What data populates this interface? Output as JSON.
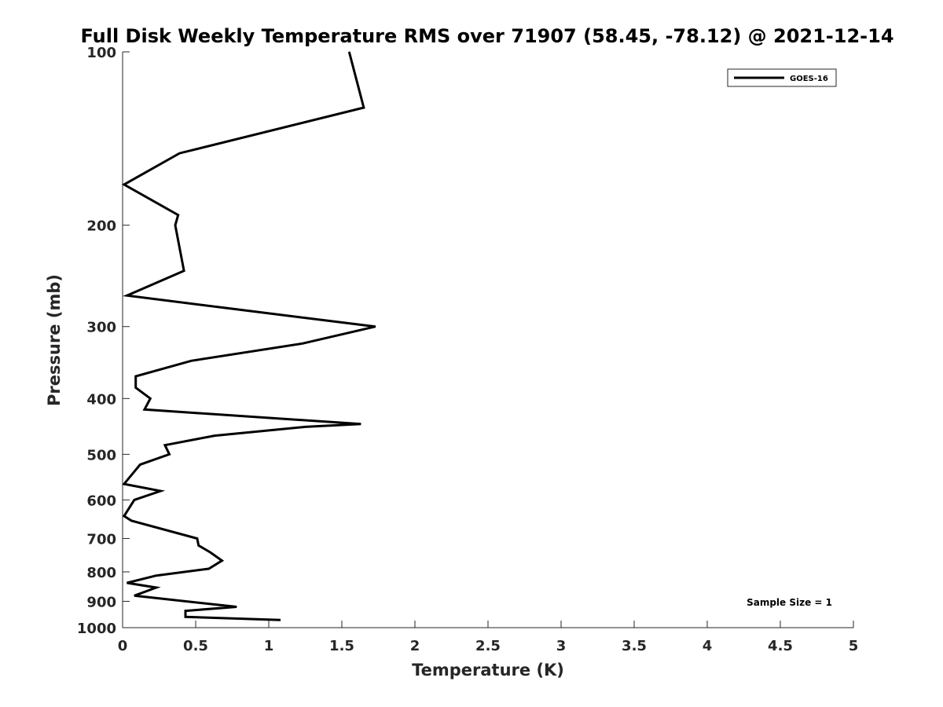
{
  "chart_data": {
    "type": "line",
    "title": "Full Disk Weekly Temperature RMS over 71907 (58.45, -78.12) @ 2021-12-14",
    "xlabel": "Temperature (K)",
    "ylabel": "Pressure (mb)",
    "xlim": [
      0,
      5
    ],
    "ylim": [
      100,
      1000
    ],
    "y_scale": "log",
    "y_reversed": true,
    "grid": false,
    "legend_position": "top-right",
    "x_ticks": [
      0,
      0.5,
      1,
      1.5,
      2,
      2.5,
      3,
      3.5,
      4,
      4.5,
      5
    ],
    "x_tick_labels": [
      "0",
      "0.5",
      "1",
      "1.5",
      "2",
      "2.5",
      "3",
      "3.5",
      "4",
      "4.5",
      "5"
    ],
    "y_ticks": [
      100,
      200,
      300,
      400,
      500,
      600,
      700,
      800,
      900,
      1000
    ],
    "y_tick_labels": [
      "100",
      "200",
      "300",
      "400",
      "500",
      "600",
      "700",
      "800",
      "900",
      "1000"
    ],
    "annotation": "Sample Size = 1",
    "series": [
      {
        "name": "GOES-16",
        "color": "#000000",
        "points": [
          {
            "t": 1.55,
            "p": 100
          },
          {
            "t": 1.65,
            "p": 125
          },
          {
            "t": 0.39,
            "p": 150
          },
          {
            "t": 0.01,
            "p": 170
          },
          {
            "t": 0.38,
            "p": 192
          },
          {
            "t": 0.36,
            "p": 200
          },
          {
            "t": 0.42,
            "p": 240
          },
          {
            "t": 0.03,
            "p": 265
          },
          {
            "t": 0.78,
            "p": 280
          },
          {
            "t": 1.73,
            "p": 300
          },
          {
            "t": 1.23,
            "p": 321
          },
          {
            "t": 0.47,
            "p": 344
          },
          {
            "t": 0.09,
            "p": 366
          },
          {
            "t": 0.09,
            "p": 383
          },
          {
            "t": 0.19,
            "p": 400
          },
          {
            "t": 0.15,
            "p": 418
          },
          {
            "t": 1.63,
            "p": 443
          },
          {
            "t": 1.25,
            "p": 448
          },
          {
            "t": 0.63,
            "p": 464
          },
          {
            "t": 0.29,
            "p": 482
          },
          {
            "t": 0.32,
            "p": 500
          },
          {
            "t": 0.12,
            "p": 521
          },
          {
            "t": 0.01,
            "p": 563
          },
          {
            "t": 0.26,
            "p": 579
          },
          {
            "t": 0.08,
            "p": 600
          },
          {
            "t": 0.01,
            "p": 640
          },
          {
            "t": 0.06,
            "p": 652
          },
          {
            "t": 0.51,
            "p": 700
          },
          {
            "t": 0.52,
            "p": 720
          },
          {
            "t": 0.6,
            "p": 740
          },
          {
            "t": 0.68,
            "p": 765
          },
          {
            "t": 0.59,
            "p": 790
          },
          {
            "t": 0.23,
            "p": 812
          },
          {
            "t": 0.03,
            "p": 836
          },
          {
            "t": 0.23,
            "p": 852
          },
          {
            "t": 0.08,
            "p": 880
          },
          {
            "t": 0.78,
            "p": 920
          },
          {
            "t": 0.43,
            "p": 935
          },
          {
            "t": 0.43,
            "p": 958
          },
          {
            "t": 1.08,
            "p": 970
          }
        ]
      }
    ]
  }
}
